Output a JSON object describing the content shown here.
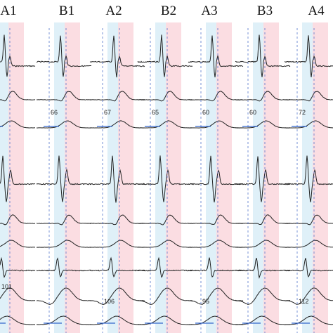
{
  "columns": [
    {
      "label": "A1",
      "lower_value": 101
    },
    {
      "label": "B1",
      "upper_value": 66
    },
    {
      "label": "A2",
      "upper_value": 67,
      "lower_value": 106
    },
    {
      "label": "B2",
      "upper_value": 65
    },
    {
      "label": "A3",
      "upper_value": 60,
      "lower_value": 95
    },
    {
      "label": "B3",
      "upper_value": 60
    },
    {
      "label": "A4",
      "upper_value": 72,
      "lower_value": 112
    }
  ]
}
